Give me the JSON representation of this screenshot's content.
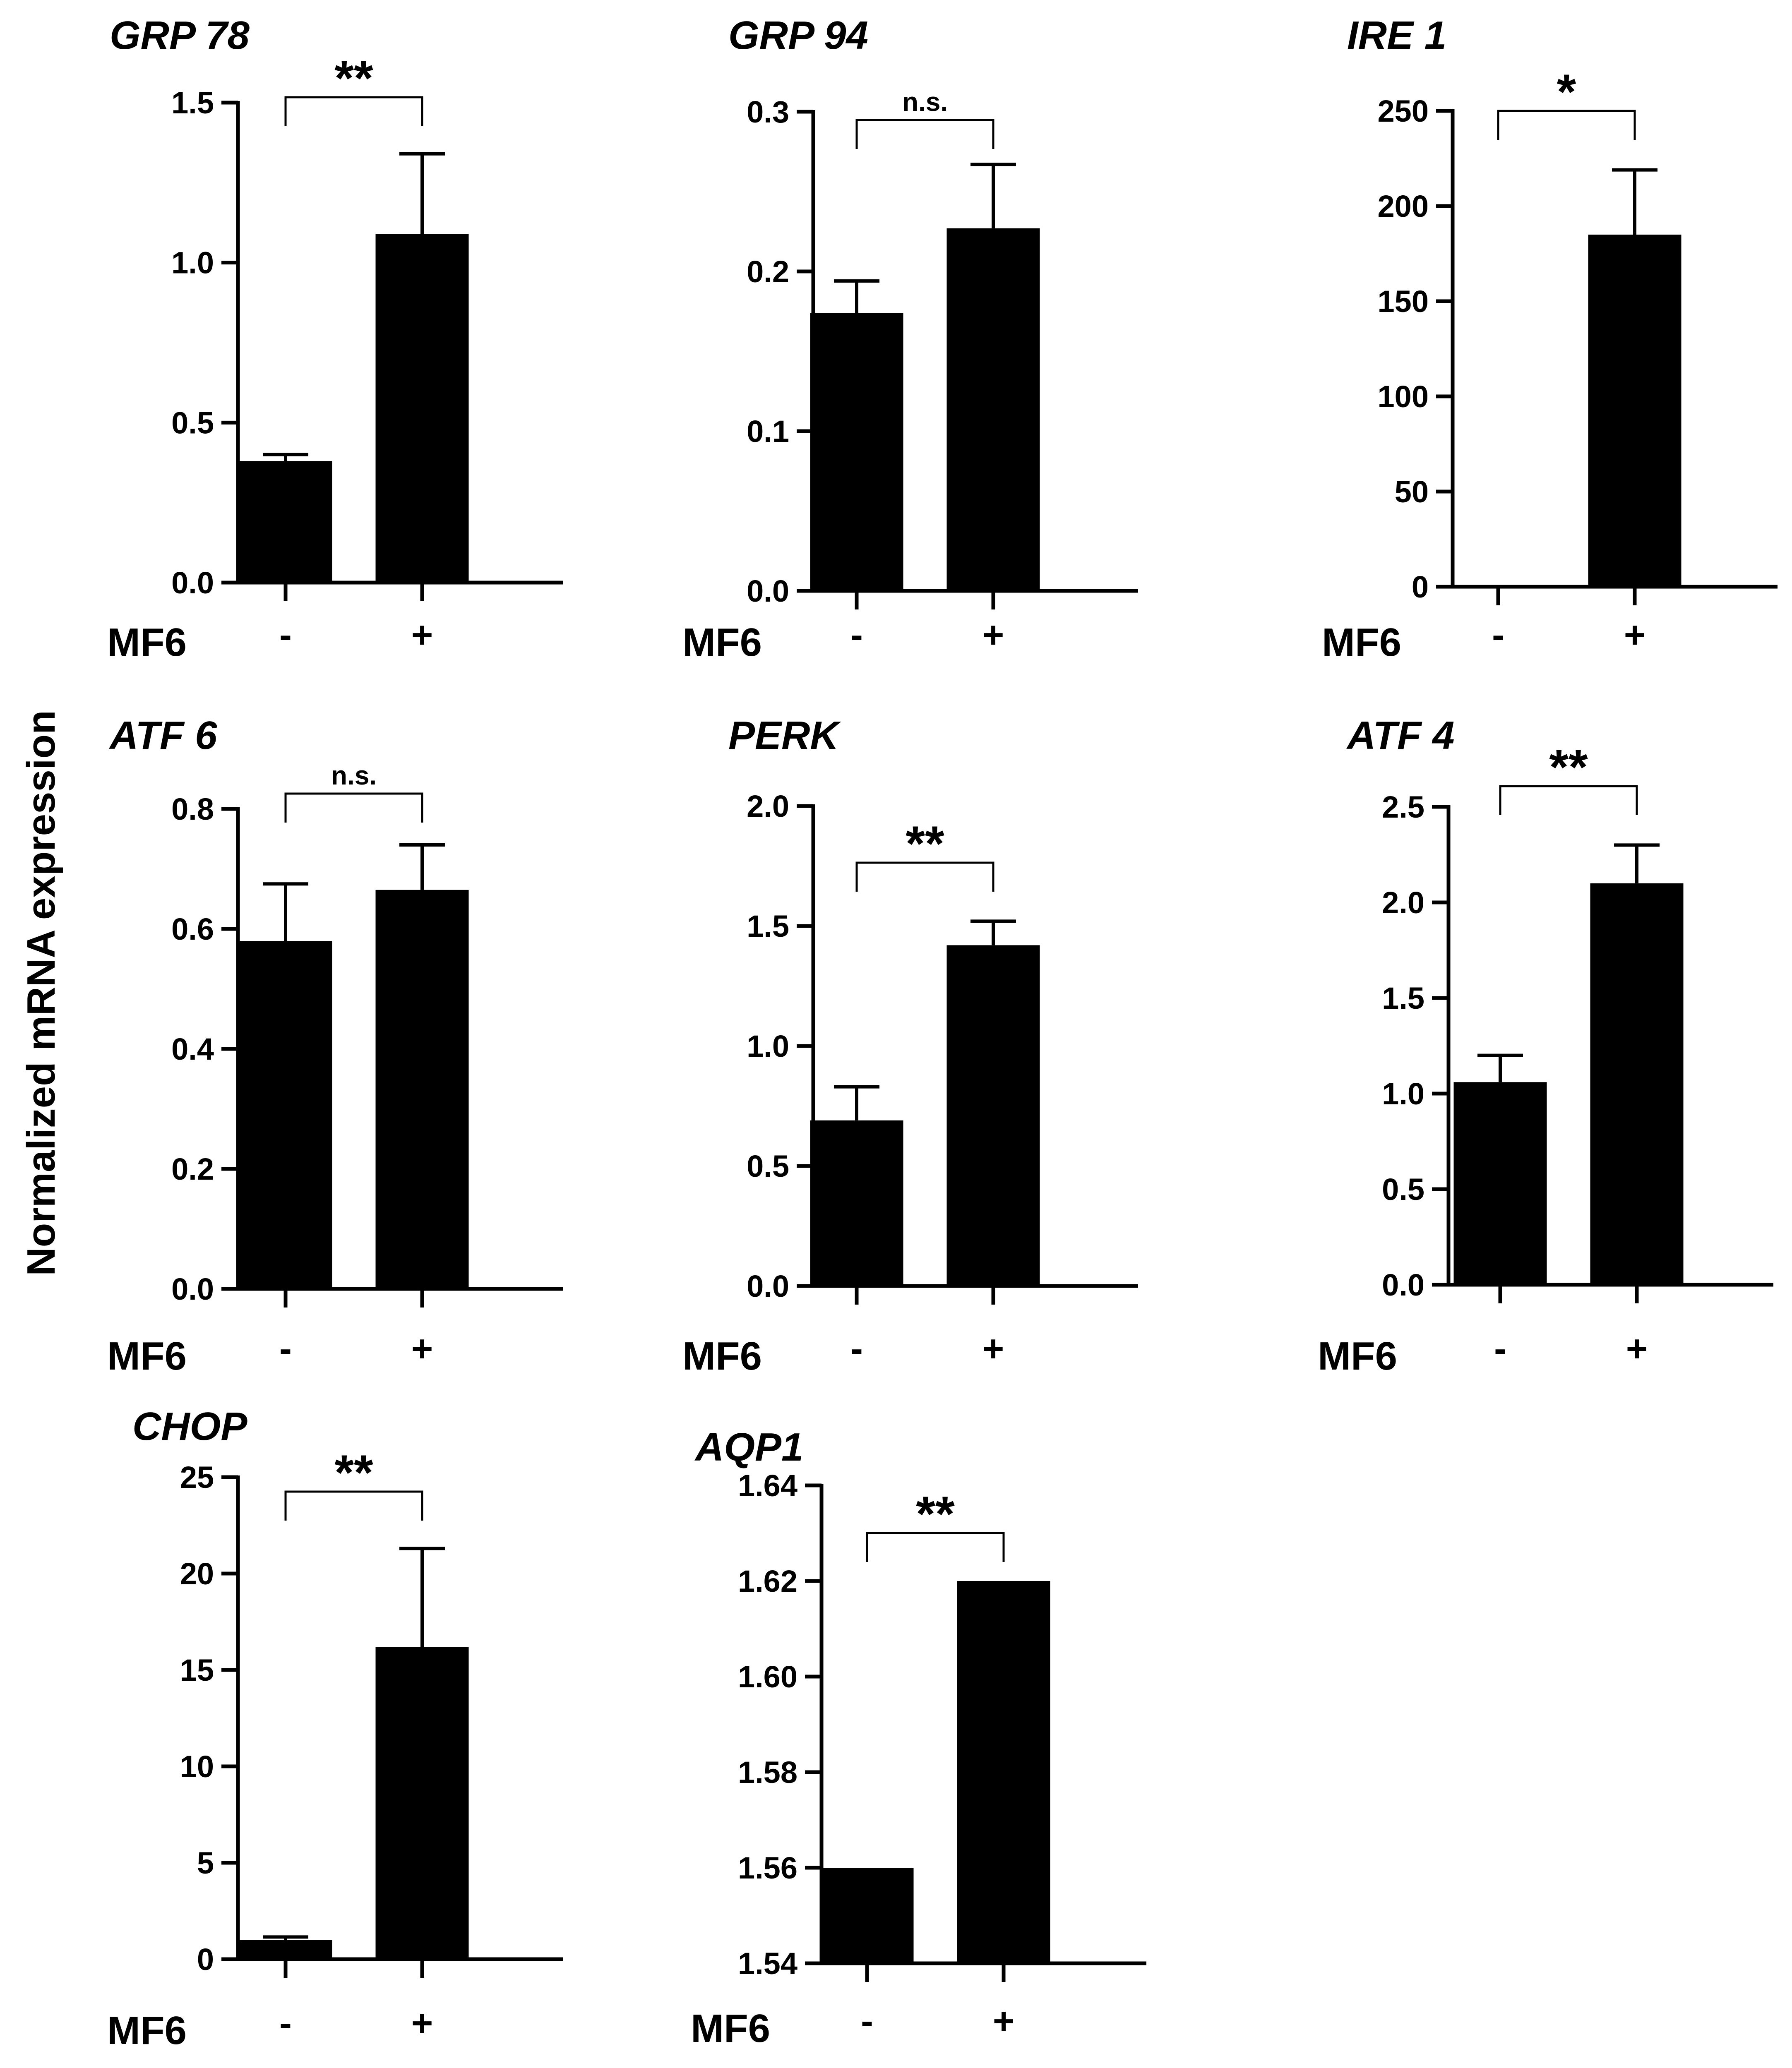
{
  "figure": {
    "ylabel": "Normalized mRNA expression",
    "group_label": "MF6",
    "condition_labels": [
      "-",
      "+"
    ]
  },
  "colors": {
    "bar": "#000000",
    "axis": "#000000",
    "background": "#ffffff"
  },
  "chart_data": [
    {
      "type": "bar",
      "title": "GRP 78",
      "categories": [
        "-",
        "+"
      ],
      "values": [
        0.38,
        1.09
      ],
      "errors": [
        0.02,
        0.25
      ],
      "ylim": [
        0,
        1.5
      ],
      "yticks": [
        0.0,
        0.5,
        1.0,
        1.5
      ],
      "ytick_labels": [
        "0.0",
        "0.5",
        "1.0",
        "1.5"
      ],
      "significance": "**"
    },
    {
      "type": "bar",
      "title": "GRP 94",
      "categories": [
        "-",
        "+"
      ],
      "values": [
        0.174,
        0.227
      ],
      "errors": [
        0.02,
        0.04
      ],
      "ylim": [
        0,
        0.3
      ],
      "yticks": [
        0.0,
        0.1,
        0.2,
        0.3
      ],
      "ytick_labels": [
        "0.0",
        "0.1",
        "0.2",
        "0.3"
      ],
      "significance": "n.s."
    },
    {
      "type": "bar",
      "title": "IRE 1",
      "categories": [
        "-",
        "+"
      ],
      "values": [
        0,
        185
      ],
      "errors": [
        0,
        34
      ],
      "ylim": [
        0,
        250
      ],
      "yticks": [
        0,
        50,
        100,
        150,
        200,
        250
      ],
      "ytick_labels": [
        "0",
        "50",
        "100",
        "150",
        "200",
        "250"
      ],
      "significance": "*"
    },
    {
      "type": "bar",
      "title": "ATF 6",
      "categories": [
        "-",
        "+"
      ],
      "values": [
        0.58,
        0.665
      ],
      "errors": [
        0.095,
        0.075
      ],
      "ylim": [
        0,
        0.8
      ],
      "yticks": [
        0.0,
        0.2,
        0.4,
        0.6,
        0.8
      ],
      "ytick_labels": [
        "0.0",
        "0.2",
        "0.4",
        "0.6",
        "0.8"
      ],
      "significance": "n.s."
    },
    {
      "type": "bar",
      "title": "PERK",
      "categories": [
        "-",
        "+"
      ],
      "values": [
        0.69,
        1.42
      ],
      "errors": [
        0.14,
        0.1
      ],
      "ylim": [
        0,
        2.0
      ],
      "yticks": [
        0.0,
        0.5,
        1.0,
        1.5,
        2.0
      ],
      "ytick_labels": [
        "0.0",
        "0.5",
        "1.0",
        "1.5",
        "2.0"
      ],
      "significance": "**"
    },
    {
      "type": "bar",
      "title": "ATF 4",
      "categories": [
        "-",
        "+"
      ],
      "values": [
        1.06,
        2.1
      ],
      "errors": [
        0.14,
        0.2
      ],
      "ylim": [
        0,
        2.5
      ],
      "yticks": [
        0.0,
        0.5,
        1.0,
        1.5,
        2.0,
        2.5
      ],
      "ytick_labels": [
        "0.0",
        "0.5",
        "1.0",
        "1.5",
        "2.0",
        "2.5"
      ],
      "significance": "**"
    },
    {
      "type": "bar",
      "title": "CHOP",
      "categories": [
        "-",
        "+"
      ],
      "values": [
        1.0,
        16.2
      ],
      "errors": [
        0.15,
        5.1
      ],
      "ylim": [
        0,
        25
      ],
      "yticks": [
        0,
        5,
        10,
        15,
        20,
        25
      ],
      "ytick_labels": [
        "0",
        "5",
        "10",
        "15",
        "20",
        "25"
      ],
      "significance": "**"
    },
    {
      "type": "bar",
      "title": "AQP1",
      "categories": [
        "-",
        "+"
      ],
      "values": [
        1.56,
        1.62
      ],
      "errors": [
        0,
        0
      ],
      "ylim": [
        1.54,
        1.64
      ],
      "yticks": [
        1.54,
        1.56,
        1.58,
        1.6,
        1.62,
        1.64
      ],
      "ytick_labels": [
        "1.54",
        "1.56",
        "1.58",
        "1.60",
        "1.62",
        "1.64"
      ],
      "significance": "**"
    }
  ]
}
